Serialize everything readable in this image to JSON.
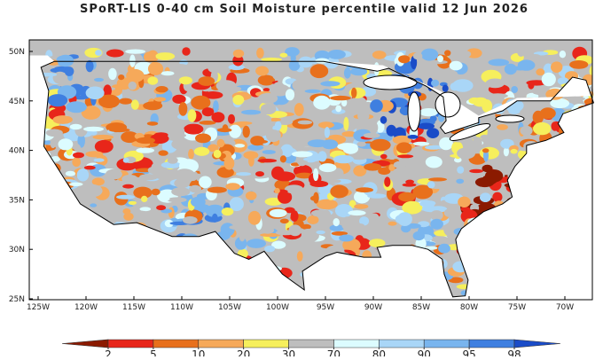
{
  "title": "SPoRT-LIS 0-40 cm Soil Moisture percentile valid 12 Jun 2026",
  "map": {
    "lat_ticks": [
      "50N",
      "45N",
      "40N",
      "35N",
      "30N",
      "25N"
    ],
    "lon_ticks": [
      "125W",
      "120W",
      "115W",
      "110W",
      "105W",
      "100W",
      "95W",
      "90W",
      "85W",
      "80W",
      "75W",
      "70W"
    ]
  },
  "colorbar": {
    "ticks": [
      2,
      5,
      10,
      20,
      30,
      70,
      80,
      90,
      95,
      98
    ],
    "colors": [
      "#8b1a00",
      "#e8261a",
      "#e8701c",
      "#f6a95a",
      "#f6ef5c",
      "#bebebe",
      "#dcfcff",
      "#a9d6f7",
      "#79b5ee",
      "#3f7fe0",
      "#1a4cc8"
    ]
  }
}
